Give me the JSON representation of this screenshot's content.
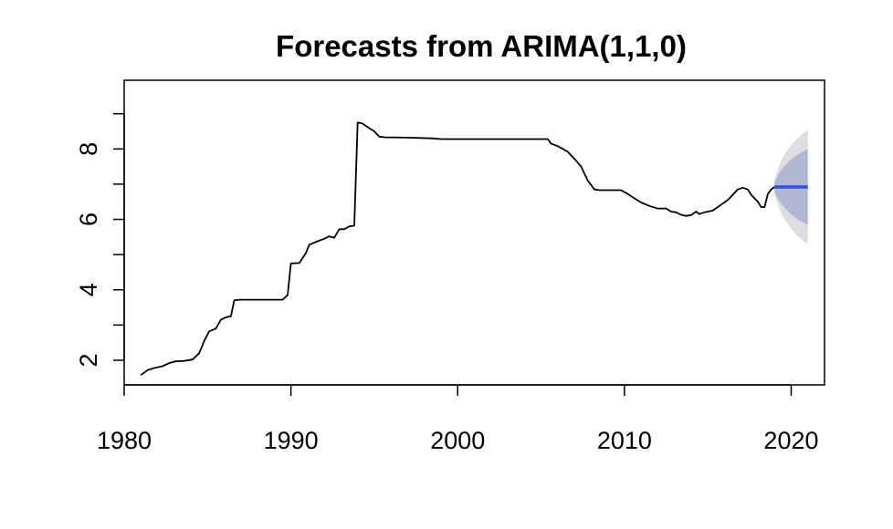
{
  "chart_data": {
    "type": "line",
    "title": "Forecasts from ARIMA(1,1,0)",
    "xlabel": "",
    "ylabel": "",
    "xlim": [
      1980,
      2022
    ],
    "ylim": [
      1.3,
      9.95
    ],
    "x_ticks": [
      1980,
      1990,
      2000,
      2010,
      2020
    ],
    "y_ticks": [
      2,
      4,
      6,
      8
    ],
    "y_minor_ticks": [
      3,
      5,
      7,
      9
    ],
    "grid": false,
    "colors": {
      "series": "#000000",
      "forecast": "#2e4ee8",
      "band80": "#b3b7d6",
      "band95": "#dedee2"
    },
    "series": [
      {
        "points": [
          [
            1981.0,
            1.58
          ],
          [
            1981.4,
            1.72
          ],
          [
            1981.8,
            1.78
          ],
          [
            1982.3,
            1.83
          ],
          [
            1982.7,
            1.92
          ],
          [
            1983.1,
            1.97
          ],
          [
            1983.6,
            1.98
          ],
          [
            1984.1,
            2.02
          ],
          [
            1984.5,
            2.2
          ],
          [
            1984.8,
            2.55
          ],
          [
            1985.1,
            2.82
          ],
          [
            1985.5,
            2.9
          ],
          [
            1985.8,
            3.15
          ],
          [
            1986.1,
            3.22
          ],
          [
            1986.4,
            3.25
          ],
          [
            1986.6,
            3.7
          ],
          [
            1986.9,
            3.72
          ],
          [
            1987.5,
            3.72
          ],
          [
            1988.5,
            3.72
          ],
          [
            1989.5,
            3.72
          ],
          [
            1989.8,
            3.85
          ],
          [
            1990.0,
            4.75
          ],
          [
            1990.5,
            4.76
          ],
          [
            1990.9,
            5.05
          ],
          [
            1991.1,
            5.28
          ],
          [
            1991.6,
            5.38
          ],
          [
            1992.0,
            5.45
          ],
          [
            1992.3,
            5.52
          ],
          [
            1992.6,
            5.48
          ],
          [
            1992.9,
            5.72
          ],
          [
            1993.2,
            5.72
          ],
          [
            1993.5,
            5.8
          ],
          [
            1993.8,
            5.82
          ],
          [
            1994.0,
            8.75
          ],
          [
            1994.3,
            8.72
          ],
          [
            1994.6,
            8.62
          ],
          [
            1995.0,
            8.5
          ],
          [
            1995.3,
            8.35
          ],
          [
            1995.7,
            8.33
          ],
          [
            1996.0,
            8.33
          ],
          [
            1997.0,
            8.32
          ],
          [
            1998.5,
            8.3
          ],
          [
            1999.0,
            8.28
          ],
          [
            2001.0,
            8.28
          ],
          [
            2003.0,
            8.28
          ],
          [
            2005.4,
            8.28
          ],
          [
            2005.6,
            8.15
          ],
          [
            2006.0,
            8.08
          ],
          [
            2006.6,
            7.92
          ],
          [
            2007.0,
            7.72
          ],
          [
            2007.4,
            7.5
          ],
          [
            2007.8,
            7.1
          ],
          [
            2008.2,
            6.85
          ],
          [
            2008.5,
            6.83
          ],
          [
            2009.0,
            6.83
          ],
          [
            2009.5,
            6.83
          ],
          [
            2009.8,
            6.83
          ],
          [
            2010.2,
            6.72
          ],
          [
            2010.6,
            6.6
          ],
          [
            2011.0,
            6.48
          ],
          [
            2011.5,
            6.38
          ],
          [
            2012.0,
            6.31
          ],
          [
            2012.5,
            6.31
          ],
          [
            2012.8,
            6.22
          ],
          [
            2013.1,
            6.2
          ],
          [
            2013.4,
            6.13
          ],
          [
            2013.7,
            6.1
          ],
          [
            2014.0,
            6.12
          ],
          [
            2014.3,
            6.22
          ],
          [
            2014.5,
            6.15
          ],
          [
            2014.8,
            6.2
          ],
          [
            2015.0,
            6.22
          ],
          [
            2015.3,
            6.25
          ],
          [
            2015.6,
            6.35
          ],
          [
            2015.9,
            6.45
          ],
          [
            2016.2,
            6.55
          ],
          [
            2016.5,
            6.7
          ],
          [
            2016.8,
            6.85
          ],
          [
            2017.1,
            6.9
          ],
          [
            2017.4,
            6.85
          ],
          [
            2017.6,
            6.7
          ],
          [
            2017.8,
            6.6
          ],
          [
            2018.0,
            6.5
          ],
          [
            2018.2,
            6.35
          ],
          [
            2018.4,
            6.35
          ],
          [
            2018.6,
            6.72
          ],
          [
            2018.8,
            6.85
          ],
          [
            2019.0,
            6.92
          ]
        ]
      }
    ],
    "forecast": {
      "x": [
        2019.0,
        2019.25,
        2019.5,
        2019.75,
        2020.0,
        2020.25,
        2020.5,
        2020.75,
        2021.0
      ],
      "mean": [
        6.92,
        6.92,
        6.92,
        6.92,
        6.92,
        6.92,
        6.92,
        6.92,
        6.92
      ],
      "lo80": [
        6.78,
        6.55,
        6.38,
        6.25,
        6.14,
        6.05,
        5.97,
        5.9,
        5.85
      ],
      "hi80": [
        7.06,
        7.29,
        7.46,
        7.59,
        7.7,
        7.79,
        7.87,
        7.94,
        8.0
      ],
      "lo95": [
        6.7,
        6.35,
        6.08,
        5.9,
        5.73,
        5.6,
        5.48,
        5.38,
        5.3
      ],
      "hi95": [
        7.14,
        7.49,
        7.76,
        7.94,
        8.11,
        8.24,
        8.36,
        8.46,
        8.54
      ]
    }
  }
}
